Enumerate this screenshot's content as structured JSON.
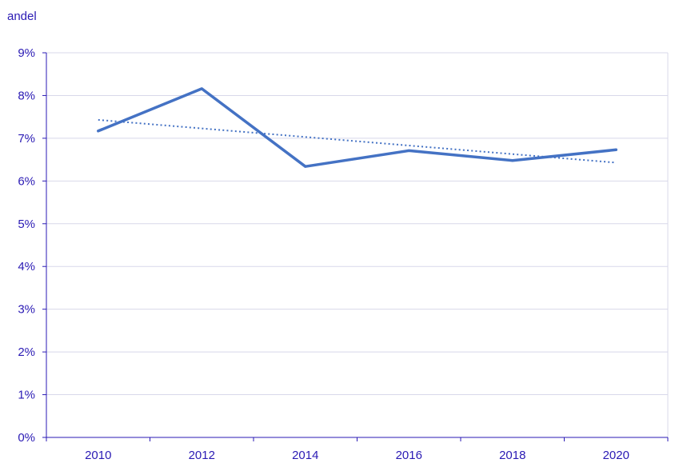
{
  "chart_data": {
    "type": "line",
    "ylabel": "andel",
    "xlabel": "",
    "x_ticks": [
      "2010",
      "2012",
      "2014",
      "2016",
      "2018",
      "2020"
    ],
    "y_ticks": [
      "0%",
      "1%",
      "2%",
      "3%",
      "4%",
      "5%",
      "6%",
      "7%",
      "8%",
      "9%"
    ],
    "xlim": [
      2009,
      2021
    ],
    "ylim": [
      0,
      9
    ],
    "grid": true,
    "legend": "none",
    "colors": {
      "text": "#2a1ab4",
      "grid": "#d8d8ea",
      "axis": "#2a1ab4",
      "series": "#4472c4"
    },
    "series": [
      {
        "style": "solid",
        "x": [
          2010,
          2012,
          2014,
          2016,
          2018,
          2020
        ],
        "y": [
          7.17,
          8.16,
          6.34,
          6.71,
          6.48,
          6.73
        ]
      },
      {
        "style": "dotted-trendline",
        "x": [
          2010,
          2020
        ],
        "y": [
          7.43,
          6.43
        ]
      }
    ]
  }
}
